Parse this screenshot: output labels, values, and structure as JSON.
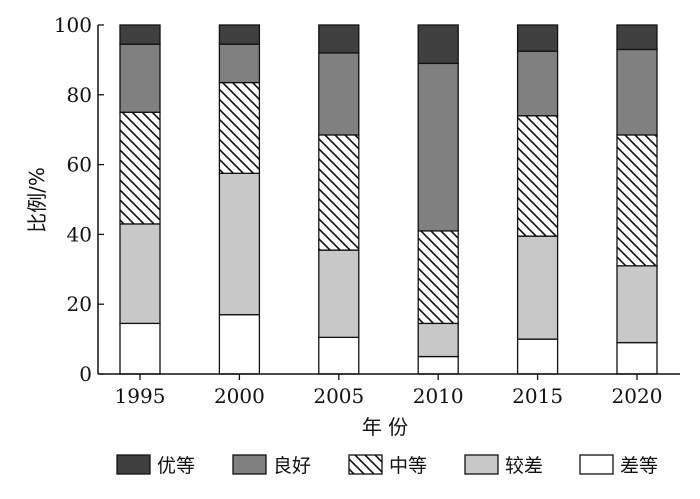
{
  "chart_data": {
    "type": "bar",
    "stacked": true,
    "title": "",
    "xlabel": "年 份",
    "ylabel": "比例/%",
    "ylim": [
      0,
      100
    ],
    "yticks": [
      0,
      20,
      40,
      60,
      80,
      100
    ],
    "categories": [
      "1995",
      "2000",
      "2005",
      "2010",
      "2015",
      "2020"
    ],
    "series": [
      {
        "name": "差等",
        "color": "#ffffff",
        "pattern": "none",
        "values": [
          14.5,
          17.0,
          10.5,
          5.0,
          10.0,
          9.0
        ]
      },
      {
        "name": "较差",
        "color": "#c8c8c8",
        "pattern": "none",
        "values": [
          28.5,
          40.5,
          25.0,
          9.5,
          29.5,
          22.0
        ]
      },
      {
        "name": "中等",
        "color": "#ffffff",
        "pattern": "diagonal-hatch",
        "values": [
          32.0,
          26.0,
          33.0,
          26.5,
          34.5,
          37.5
        ]
      },
      {
        "name": "良好",
        "color": "#808080",
        "pattern": "none",
        "values": [
          19.5,
          11.0,
          23.5,
          48.0,
          18.5,
          24.5
        ]
      },
      {
        "name": "优等",
        "color": "#404040",
        "pattern": "none",
        "values": [
          5.5,
          5.5,
          8.0,
          11.0,
          7.5,
          7.0
        ]
      }
    ],
    "legend": {
      "placement": "bottom",
      "order": [
        "优等",
        "良好",
        "中等",
        "较差",
        "差等"
      ]
    },
    "grid": false
  }
}
